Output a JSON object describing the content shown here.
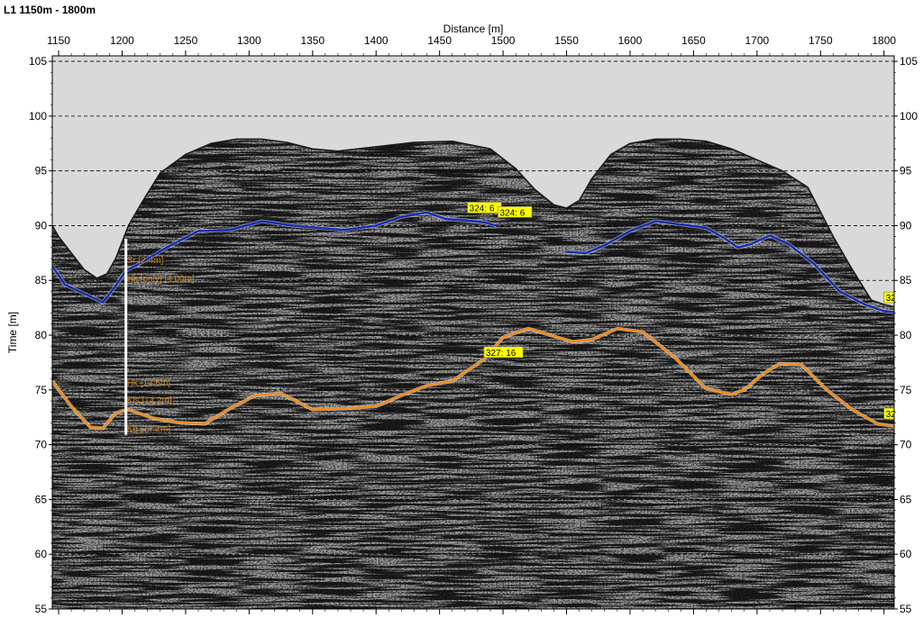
{
  "window_title": "L1 1150m - 1800m",
  "colors": {
    "upper_horizon": "#1a2eb0",
    "lower_horizon": "#f08c1c",
    "air": "#d9d9d9",
    "label_box": "#ffff00",
    "interface_label": "#c8821e"
  },
  "chart_data": {
    "type": "line",
    "title": "L1 1150m - 1800m",
    "xlabel": "Distance [m]",
    "ylabel": "Time [m]",
    "xlim": [
      1145,
      1808
    ],
    "ylim": [
      55,
      105.5
    ],
    "xticks": [
      1150,
      1200,
      1250,
      1300,
      1350,
      1400,
      1450,
      1500,
      1550,
      1600,
      1650,
      1700,
      1750,
      1800
    ],
    "yticks": [
      55,
      60,
      65,
      70,
      75,
      80,
      85,
      90,
      95,
      100,
      105
    ],
    "grid": true,
    "surface": {
      "x": [
        1145,
        1150,
        1160,
        1170,
        1180,
        1188,
        1195,
        1205,
        1215,
        1230,
        1250,
        1270,
        1290,
        1310,
        1330,
        1350,
        1370,
        1400,
        1430,
        1460,
        1490,
        1510,
        1525,
        1540,
        1550,
        1560,
        1570,
        1585,
        1600,
        1620,
        1640,
        1660,
        1680,
        1700,
        1720,
        1740,
        1760,
        1775,
        1790,
        1800,
        1808
      ],
      "y": [
        90,
        89,
        87.5,
        86,
        85.2,
        85.6,
        87,
        90,
        92,
        94.8,
        96.5,
        97.5,
        97.9,
        97.9,
        97.6,
        97,
        96.8,
        97.2,
        97.6,
        97.7,
        97,
        95.2,
        93.3,
        91.9,
        91.6,
        92.3,
        94.3,
        96.5,
        97.5,
        97.9,
        97.9,
        97.7,
        97,
        96,
        95,
        93.5,
        89,
        86,
        83.2,
        82.8,
        82.6
      ]
    },
    "series": [
      {
        "color": "#1a2eb0",
        "segments": [
          {
            "x": [
              1145,
              1155,
              1170,
              1185,
              1195,
              1203,
              1215,
              1235,
              1260,
              1285,
              1310,
              1335,
              1355,
              1375,
              1400,
              1420,
              1440,
              1455,
              1470,
              1485,
              1495
            ],
            "y": [
              86.3,
              84.6,
              83.8,
              83,
              84.5,
              85.9,
              86.6,
              88,
              89.5,
              89.6,
              90.4,
              90,
              89.8,
              89.6,
              90,
              90.8,
              91.2,
              90.6,
              90.5,
              90.3,
              90
            ]
          },
          {
            "x": [
              1550,
              1565,
              1580,
              1600,
              1620,
              1640,
              1660,
              1675,
              1685,
              1695,
              1710,
              1725,
              1745,
              1765,
              1785,
              1800,
              1808
            ],
            "y": [
              87.6,
              87.5,
              88.2,
              89.5,
              90.4,
              90.1,
              89.8,
              88.8,
              88,
              88.3,
              89.1,
              88.3,
              86.5,
              84,
              82.8,
              82.2,
              82.1
            ]
          }
        ]
      },
      {
        "color": "#f08c1c",
        "segments": [
          {
            "x": [
              1145,
              1160,
              1175,
              1185,
              1195,
              1205,
              1225,
              1245,
              1265,
              1285,
              1305,
              1325,
              1350,
              1375,
              1400,
              1420,
              1440,
              1460,
              1475,
              1485,
              1500,
              1520,
              1540,
              1555,
              1570,
              1590,
              1610,
              1635,
              1660,
              1680,
              1690,
              1705,
              1718,
              1735,
              1755,
              1775,
              1795,
              1808
            ],
            "y": [
              75.8,
              73.5,
              71.6,
              71.5,
              72.9,
              73.2,
              72.4,
              72,
              71.9,
              73.3,
              74.5,
              74.7,
              73.2,
              73.3,
              73.5,
              74.5,
              75.4,
              75.8,
              77,
              77.8,
              79.8,
              80.6,
              79.9,
              79.4,
              79.6,
              80.6,
              80.3,
              78,
              75.1,
              74.6,
              75,
              76.5,
              77.4,
              77.3,
              75,
              73.2,
              71.9,
              71.7
            ]
          }
        ]
      }
    ],
    "annotations": [
      {
        "type": "interface",
        "text": "Sr [2.4m]",
        "x": 1203,
        "y": 86.6
      },
      {
        "type": "interface",
        "text": "Hk [only] [4.00m]",
        "x": 1203,
        "y": 84.9
      },
      {
        "type": "interface",
        "text": "Hk [12.6m]",
        "x": 1203,
        "y": 75.4
      },
      {
        "type": "interface",
        "text": "Kls [14.2m]",
        "x": 1203,
        "y": 73.8
      },
      {
        "type": "interface",
        "text": "Kg [17.2m]",
        "x": 1203,
        "y": 71.2
      },
      {
        "type": "tag",
        "text": "324: 6",
        "x": 1472,
        "y": 91.4
      },
      {
        "type": "tag",
        "text": "324: 6",
        "x": 1496,
        "y": 91
      },
      {
        "type": "tag",
        "text": "327: 16",
        "x": 1485,
        "y": 78.2
      },
      {
        "type": "tag",
        "text": "32",
        "x": 1800,
        "y": 83.2
      },
      {
        "type": "tag",
        "text": "32",
        "x": 1800,
        "y": 72.6
      }
    ]
  }
}
